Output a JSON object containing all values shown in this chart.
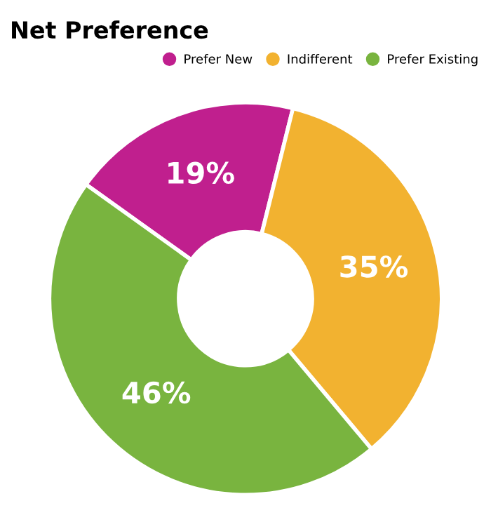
{
  "chart_data": {
    "type": "donut",
    "title": "Net Preference",
    "categories": [
      "Prefer New",
      "Indifferent",
      "Prefer Existing"
    ],
    "values": [
      19,
      35,
      46
    ],
    "colors": [
      "#c01f8e",
      "#f2b230",
      "#79b43f"
    ],
    "value_labels": [
      "19%",
      "35%",
      "46%"
    ],
    "legend": "top right"
  }
}
